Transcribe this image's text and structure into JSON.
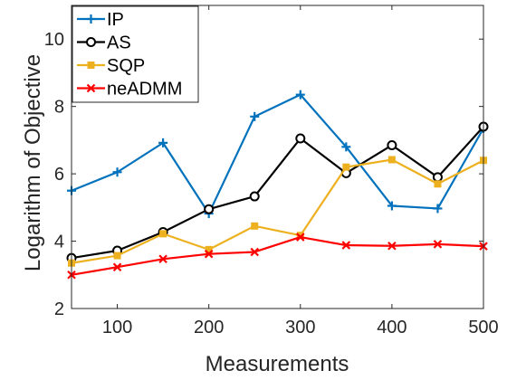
{
  "chart_data": {
    "type": "line",
    "xlabel": "Measurements",
    "ylabel": "Logarithm of Objective",
    "xlim": [
      50,
      500
    ],
    "ylim": [
      2,
      11
    ],
    "xticks": [
      100,
      200,
      300,
      400,
      500
    ],
    "yticks": [
      2,
      4,
      6,
      8,
      10
    ],
    "x": [
      50,
      100,
      150,
      200,
      250,
      300,
      350,
      400,
      450,
      500
    ],
    "legend_position": "top-left",
    "grid": false,
    "series": [
      {
        "name": "IP",
        "color": "#0072BD",
        "marker": "plus",
        "values": [
          5.5,
          6.05,
          6.92,
          4.82,
          7.7,
          8.35,
          6.8,
          5.05,
          4.97,
          7.35
        ]
      },
      {
        "name": "AS",
        "color": "#000000",
        "marker": "circle",
        "values": [
          3.5,
          3.72,
          4.27,
          4.95,
          5.33,
          7.05,
          6.02,
          6.85,
          5.9,
          7.4
        ]
      },
      {
        "name": "SQP",
        "color": "#EDB120",
        "marker": "square",
        "values": [
          3.35,
          3.57,
          4.22,
          3.75,
          4.45,
          4.17,
          6.2,
          6.42,
          5.7,
          6.4
        ]
      },
      {
        "name": "neADMM",
        "color": "#FF0000",
        "marker": "x",
        "values": [
          3.0,
          3.23,
          3.47,
          3.62,
          3.68,
          4.12,
          3.88,
          3.86,
          3.91,
          3.85
        ]
      }
    ]
  }
}
